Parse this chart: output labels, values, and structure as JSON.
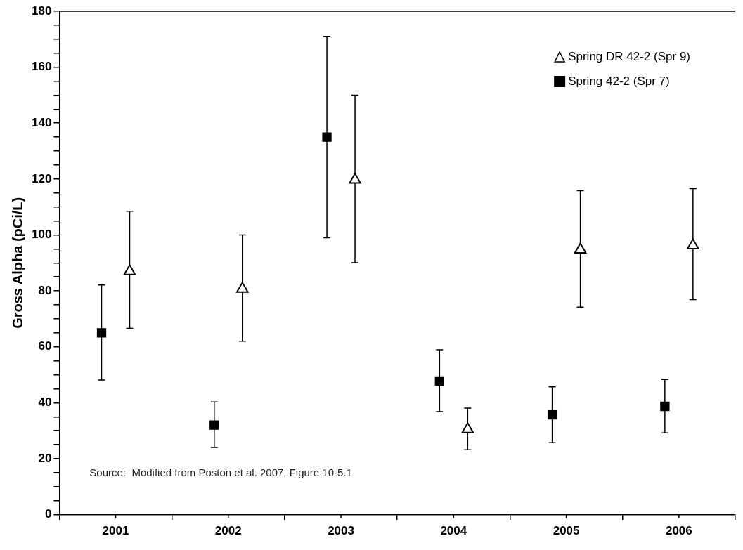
{
  "chart_data": {
    "type": "scatter",
    "ylabel": "Gross Alpha (pCi/L)",
    "categories": [
      "2001",
      "2002",
      "2003",
      "2004",
      "2005",
      "2006"
    ],
    "ylim": [
      0,
      180
    ],
    "yticks": [
      0,
      {
        "value": 5,
        "label": null
      },
      {
        "value": 10,
        "label": null
      },
      {
        "value": 15,
        "label": null
      },
      20,
      {
        "value": 25,
        "label": null
      },
      {
        "value": 30,
        "label": null
      },
      {
        "value": 35,
        "label": null
      },
      40,
      {
        "value": 45,
        "label": null
      },
      {
        "value": 50,
        "label": null
      },
      {
        "value": 55,
        "label": null
      },
      60,
      {
        "value": 65,
        "label": null
      },
      {
        "value": 70,
        "label": null
      },
      {
        "value": 75,
        "label": null
      },
      80,
      {
        "value": 85,
        "label": null
      },
      {
        "value": 90,
        "label": null
      },
      {
        "value": 95,
        "label": null
      },
      100,
      {
        "value": 105,
        "label": null
      },
      {
        "value": 110,
        "label": null
      },
      {
        "value": 115,
        "label": null
      },
      120,
      {
        "value": 125,
        "label": null
      },
      {
        "value": 130,
        "label": null
      },
      {
        "value": 135,
        "label": null
      },
      140,
      {
        "value": 145,
        "label": null
      },
      {
        "value": 150,
        "label": null
      },
      {
        "value": 155,
        "label": null
      },
      160,
      {
        "value": 165,
        "label": null
      },
      {
        "value": 170,
        "label": null
      },
      {
        "value": 175,
        "label": null
      },
      180
    ],
    "grid": false,
    "legend": "top right",
    "annotations": [
      "Source:  Modified from Poston et al. 2007, Figure 10-5.1"
    ],
    "series": [
      {
        "name": "Spring DR 42-2 (Spr 9)",
        "color": "#000000",
        "marker": "triangle",
        "values": [
          87,
          80.7,
          119.7,
          30.5,
          94.7,
          96.2
        ],
        "errors": [
          [
            66.6,
            108.5
          ],
          [
            62,
            100
          ],
          [
            90.1,
            150
          ],
          [
            23.2,
            38.1
          ],
          [
            74.2,
            115.8
          ],
          [
            76.9,
            116.6
          ]
        ]
      },
      {
        "name": "Spring 42-2 (Spr 7)",
        "color": "#000000",
        "marker": "square",
        "values": [
          65,
          32,
          135,
          47.8,
          35.7,
          38.7
        ],
        "errors": [
          [
            48.1,
            82.1
          ],
          [
            24,
            40.3
          ],
          [
            99,
            171
          ],
          [
            36.8,
            58.9
          ],
          [
            25.7,
            45.7
          ],
          [
            29.2,
            48.3
          ]
        ]
      }
    ]
  }
}
